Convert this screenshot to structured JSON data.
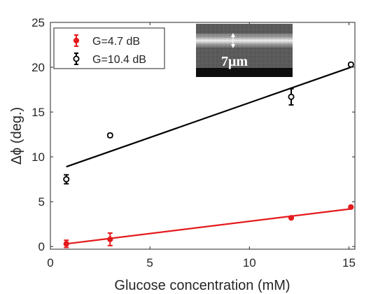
{
  "chart_data": {
    "type": "scatter",
    "xlabel": "Glucose concentration (mM)",
    "ylabel": "Δϕ (deg.)",
    "xlim": [
      0,
      15.3
    ],
    "ylim": [
      -0.3,
      25
    ],
    "x_ticks": [
      0,
      5,
      10,
      15
    ],
    "y_ticks": [
      0,
      5,
      10,
      15,
      20,
      25
    ],
    "legend_position": "top-left",
    "grid": false,
    "series": [
      {
        "name": "G=4.7 dB",
        "color": "#e41a1c",
        "marker": "filled-circle",
        "points": [
          {
            "x": 0.8,
            "y": 0.3,
            "err": 0.4
          },
          {
            "x": 3.0,
            "y": 0.8,
            "err": 0.7
          },
          {
            "x": 12.1,
            "y": 3.2,
            "err": 0.1
          },
          {
            "x": 15.1,
            "y": 4.4,
            "err": 0.1
          }
        ],
        "fit": {
          "x": [
            0.8,
            15.1
          ],
          "y": [
            0.3,
            4.2
          ]
        }
      },
      {
        "name": "G=10.4 dB",
        "color": "#000000",
        "marker": "open-circle",
        "points": [
          {
            "x": 0.8,
            "y": 7.5,
            "err": 0.5
          },
          {
            "x": 3.0,
            "y": 12.4,
            "err": 0.2
          },
          {
            "x": 12.1,
            "y": 16.7,
            "err": 0.9
          },
          {
            "x": 15.1,
            "y": 20.3,
            "err": 0.2
          }
        ],
        "fit": {
          "x": [
            0.8,
            15.1
          ],
          "y": [
            8.9,
            20.0
          ]
        }
      }
    ],
    "inset": {
      "label": "7μm",
      "description_color": "#2a2a2a"
    }
  }
}
